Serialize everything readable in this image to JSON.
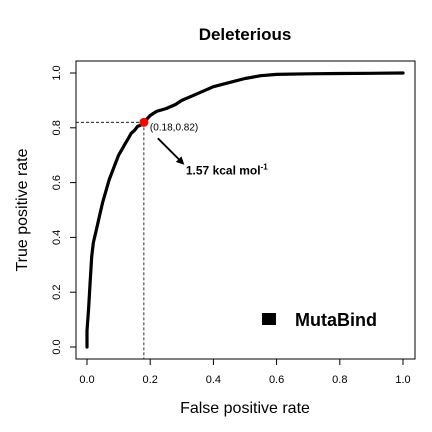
{
  "chart_data": {
    "type": "line",
    "title": "Deleterious",
    "xlabel": "False positive rate",
    "ylabel": "True positive rate",
    "xlim": [
      0,
      1
    ],
    "ylim": [
      0,
      1
    ],
    "xticks": [
      "0.0",
      "0.2",
      "0.4",
      "0.6",
      "0.8",
      "1.0"
    ],
    "yticks": [
      "0.0",
      "0.2",
      "0.4",
      "0.6",
      "0.8",
      "1.0"
    ],
    "grid": false,
    "legend_position": "bottom-right",
    "series": [
      {
        "name": "MutaBind",
        "color": "#000000",
        "x": [
          0.0,
          0.0,
          0.005,
          0.01,
          0.015,
          0.02,
          0.03,
          0.04,
          0.05,
          0.06,
          0.07,
          0.08,
          0.09,
          0.1,
          0.11,
          0.12,
          0.13,
          0.14,
          0.15,
          0.16,
          0.17,
          0.18,
          0.2,
          0.22,
          0.25,
          0.28,
          0.3,
          0.33,
          0.36,
          0.4,
          0.45,
          0.5,
          0.55,
          0.6,
          0.7,
          0.8,
          0.9,
          1.0
        ],
        "y": [
          0.0,
          0.06,
          0.14,
          0.24,
          0.33,
          0.38,
          0.43,
          0.48,
          0.53,
          0.57,
          0.61,
          0.64,
          0.67,
          0.7,
          0.72,
          0.74,
          0.76,
          0.78,
          0.79,
          0.805,
          0.81,
          0.82,
          0.845,
          0.86,
          0.87,
          0.885,
          0.9,
          0.915,
          0.93,
          0.95,
          0.965,
          0.98,
          0.99,
          0.995,
          0.997,
          0.998,
          0.999,
          1.0
        ]
      }
    ],
    "highlight_point": {
      "x": 0.18,
      "y": 0.82,
      "color": "#ff0000"
    },
    "annotations": {
      "point_label": "(0.18,0.82)",
      "threshold_label": "1.57 kcal mol",
      "threshold_superscript": "-1"
    },
    "legend": {
      "label": "MutaBind"
    }
  }
}
